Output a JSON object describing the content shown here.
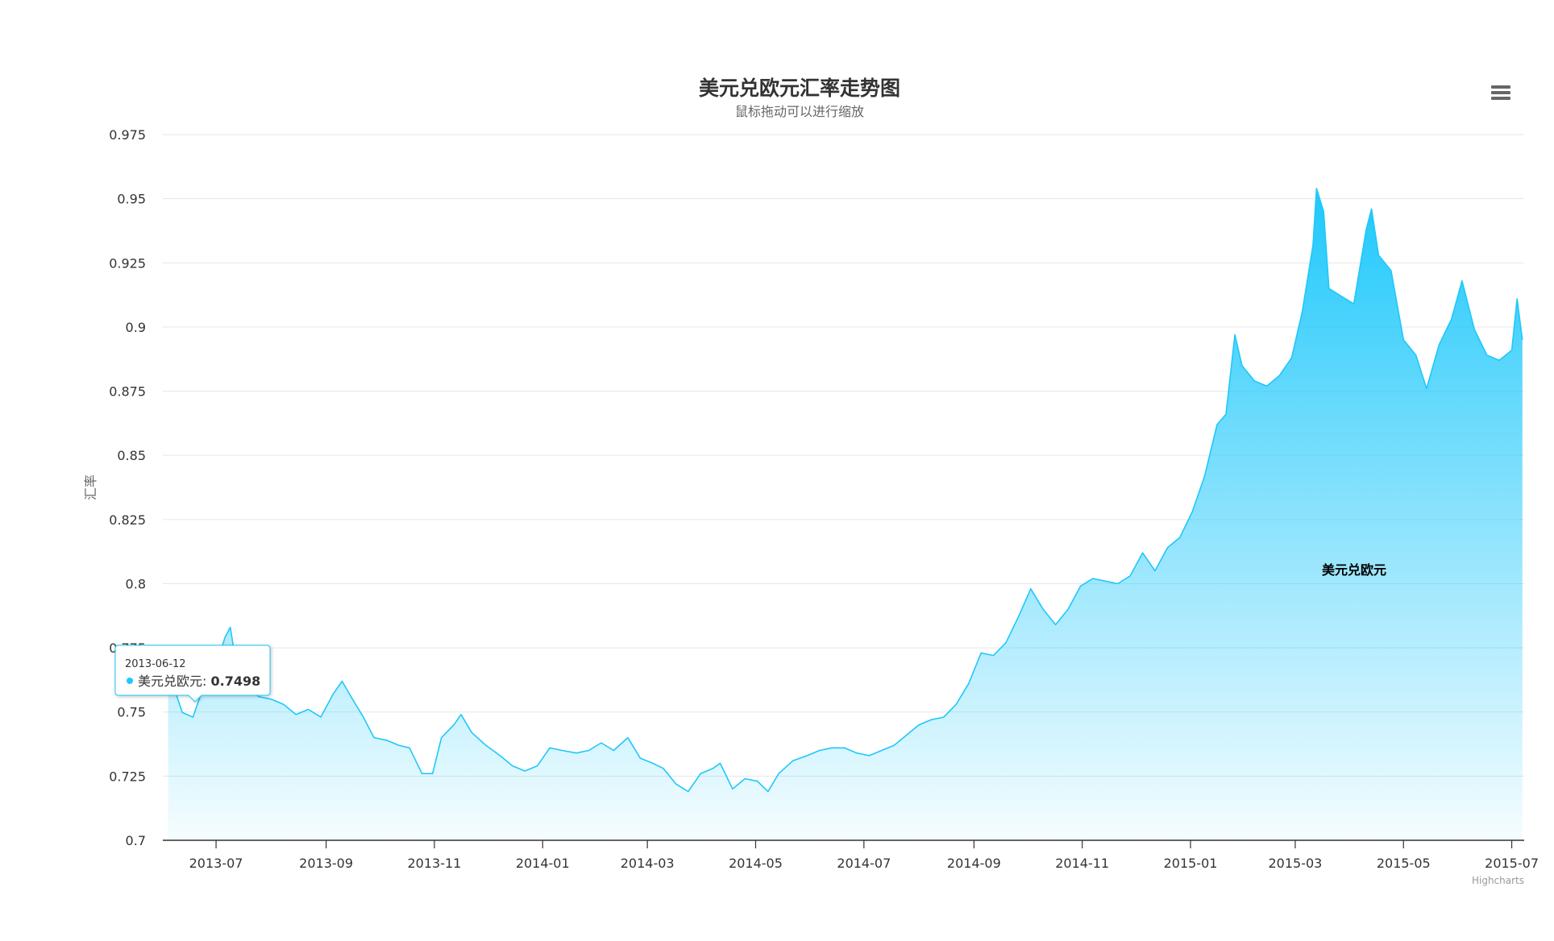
{
  "chart_data": {
    "type": "area",
    "title": "美元兑欧元汇率走势图",
    "subtitle": "鼠标拖动可以进行缩放",
    "ylabel": "汇率",
    "xlabel": "",
    "ylim": [
      0.7,
      0.975
    ],
    "yticks": [
      "0.7",
      "0.725",
      "0.75",
      "0.775",
      "0.8",
      "0.825",
      "0.85",
      "0.875",
      "0.9",
      "0.925",
      "0.95",
      "0.975"
    ],
    "xticks": [
      "2013-07",
      "2013-09",
      "2013-11",
      "2014-01",
      "2014-03",
      "2014-05",
      "2014-07",
      "2014-09",
      "2014-11",
      "2015-01",
      "2015-03",
      "2015-05",
      "2015-07"
    ],
    "xlim": [
      "2013-06-01",
      "2015-07-08"
    ],
    "grid": true,
    "legend": "none",
    "series": [
      {
        "name": "美元兑欧元",
        "color": "#1ec8fb",
        "points": [
          [
            "2013-06-04",
            0.765
          ],
          [
            "2013-06-08",
            0.758
          ],
          [
            "2013-06-12",
            0.7498
          ],
          [
            "2013-06-18",
            0.748
          ],
          [
            "2013-06-25",
            0.762
          ],
          [
            "2013-07-01",
            0.768
          ],
          [
            "2013-07-06",
            0.779
          ],
          [
            "2013-07-09",
            0.783
          ],
          [
            "2013-07-12",
            0.77
          ],
          [
            "2013-07-18",
            0.76
          ],
          [
            "2013-07-25",
            0.756
          ],
          [
            "2013-08-01",
            0.755
          ],
          [
            "2013-08-08",
            0.753
          ],
          [
            "2013-08-15",
            0.749
          ],
          [
            "2013-08-22",
            0.751
          ],
          [
            "2013-08-29",
            0.748
          ],
          [
            "2013-09-05",
            0.757
          ],
          [
            "2013-09-10",
            0.762
          ],
          [
            "2013-09-15",
            0.756
          ],
          [
            "2013-09-22",
            0.748
          ],
          [
            "2013-09-28",
            0.74
          ],
          [
            "2013-10-05",
            0.739
          ],
          [
            "2013-10-12",
            0.737
          ],
          [
            "2013-10-18",
            0.736
          ],
          [
            "2013-10-25",
            0.726
          ],
          [
            "2013-10-31",
            0.726
          ],
          [
            "2013-11-05",
            0.74
          ],
          [
            "2013-11-12",
            0.745
          ],
          [
            "2013-11-16",
            0.749
          ],
          [
            "2013-11-22",
            0.742
          ],
          [
            "2013-11-30",
            0.737
          ],
          [
            "2013-12-08",
            0.733
          ],
          [
            "2013-12-15",
            0.729
          ],
          [
            "2013-12-22",
            0.727
          ],
          [
            "2013-12-29",
            0.729
          ],
          [
            "2014-01-05",
            0.736
          ],
          [
            "2014-01-12",
            0.735
          ],
          [
            "2014-01-20",
            0.734
          ],
          [
            "2014-01-27",
            0.735
          ],
          [
            "2014-02-03",
            0.738
          ],
          [
            "2014-02-10",
            0.735
          ],
          [
            "2014-02-18",
            0.74
          ],
          [
            "2014-02-25",
            0.732
          ],
          [
            "2014-03-04",
            0.73
          ],
          [
            "2014-03-10",
            0.728
          ],
          [
            "2014-03-17",
            0.722
          ],
          [
            "2014-03-24",
            0.719
          ],
          [
            "2014-03-31",
            0.726
          ],
          [
            "2014-04-07",
            0.728
          ],
          [
            "2014-04-11",
            0.73
          ],
          [
            "2014-04-18",
            0.72
          ],
          [
            "2014-04-25",
            0.724
          ],
          [
            "2014-05-02",
            0.723
          ],
          [
            "2014-05-08",
            0.719
          ],
          [
            "2014-05-14",
            0.726
          ],
          [
            "2014-05-22",
            0.731
          ],
          [
            "2014-05-30",
            0.733
          ],
          [
            "2014-06-06",
            0.735
          ],
          [
            "2014-06-13",
            0.736
          ],
          [
            "2014-06-20",
            0.736
          ],
          [
            "2014-06-27",
            0.734
          ],
          [
            "2014-07-04",
            0.733
          ],
          [
            "2014-07-11",
            0.735
          ],
          [
            "2014-07-18",
            0.737
          ],
          [
            "2014-07-25",
            0.741
          ],
          [
            "2014-08-01",
            0.745
          ],
          [
            "2014-08-08",
            0.747
          ],
          [
            "2014-08-15",
            0.748
          ],
          [
            "2014-08-22",
            0.753
          ],
          [
            "2014-08-29",
            0.761
          ],
          [
            "2014-09-05",
            0.773
          ],
          [
            "2014-09-12",
            0.772
          ],
          [
            "2014-09-19",
            0.777
          ],
          [
            "2014-09-26",
            0.787
          ],
          [
            "2014-10-03",
            0.798
          ],
          [
            "2014-10-10",
            0.79
          ],
          [
            "2014-10-17",
            0.784
          ],
          [
            "2014-10-24",
            0.79
          ],
          [
            "2014-10-31",
            0.799
          ],
          [
            "2014-11-07",
            0.802
          ],
          [
            "2014-11-14",
            0.801
          ],
          [
            "2014-11-21",
            0.8
          ],
          [
            "2014-11-28",
            0.803
          ],
          [
            "2014-12-05",
            0.812
          ],
          [
            "2014-12-12",
            0.805
          ],
          [
            "2014-12-19",
            0.814
          ],
          [
            "2014-12-26",
            0.818
          ],
          [
            "2015-01-02",
            0.828
          ],
          [
            "2015-01-09",
            0.842
          ],
          [
            "2015-01-16",
            0.862
          ],
          [
            "2015-01-21",
            0.866
          ],
          [
            "2015-01-26",
            0.897
          ],
          [
            "2015-01-30",
            0.885
          ],
          [
            "2015-02-06",
            0.879
          ],
          [
            "2015-02-13",
            0.877
          ],
          [
            "2015-02-20",
            0.881
          ],
          [
            "2015-02-27",
            0.888
          ],
          [
            "2015-03-05",
            0.906
          ],
          [
            "2015-03-11",
            0.932
          ],
          [
            "2015-03-13",
            0.954
          ],
          [
            "2015-03-17",
            0.945
          ],
          [
            "2015-03-20",
            0.915
          ],
          [
            "2015-03-27",
            0.912
          ],
          [
            "2015-04-03",
            0.909
          ],
          [
            "2015-04-10",
            0.938
          ],
          [
            "2015-04-13",
            0.946
          ],
          [
            "2015-04-17",
            0.928
          ],
          [
            "2015-04-24",
            0.922
          ],
          [
            "2015-05-01",
            0.895
          ],
          [
            "2015-05-08",
            0.889
          ],
          [
            "2015-05-14",
            0.876
          ],
          [
            "2015-05-21",
            0.893
          ],
          [
            "2015-05-28",
            0.903
          ],
          [
            "2015-06-03",
            0.918
          ],
          [
            "2015-06-10",
            0.899
          ],
          [
            "2015-06-17",
            0.889
          ],
          [
            "2015-06-24",
            0.887
          ],
          [
            "2015-07-01",
            0.891
          ],
          [
            "2015-07-04",
            0.911
          ],
          [
            "2015-07-07",
            0.895
          ]
        ]
      }
    ],
    "series_label": "美元兑欧元",
    "tooltip": {
      "date": "2013-06-12",
      "name": "美元兑欧元",
      "value": "0.7498"
    },
    "credits": "Highcharts"
  },
  "menu_icon": "hamburger-menu-icon"
}
